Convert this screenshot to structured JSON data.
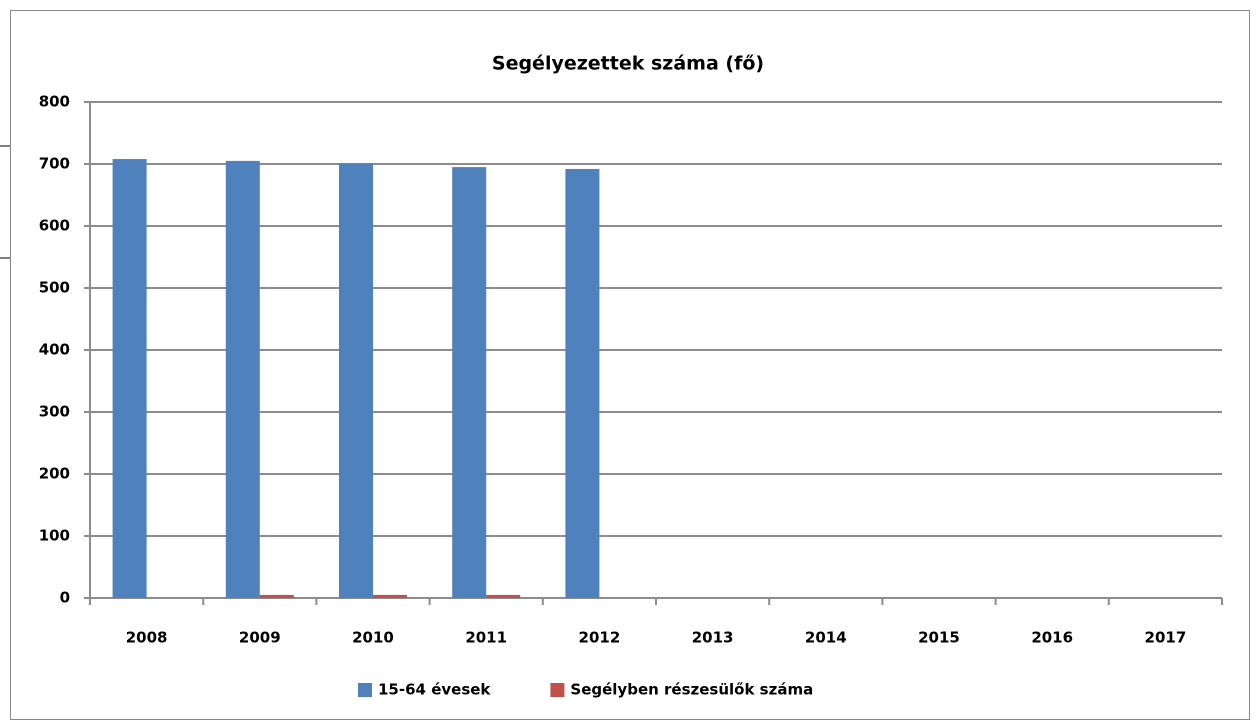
{
  "chart_data": {
    "type": "bar",
    "title": "Segélyezettek száma (fő)",
    "categories": [
      "2008",
      "2009",
      "2010",
      "2011",
      "2012",
      "2013",
      "2014",
      "2015",
      "2016",
      "2017"
    ],
    "series": [
      {
        "name": "15-64 évesek",
        "color": "#4f81bd",
        "values": [
          708,
          705,
          701,
          695,
          692,
          null,
          null,
          null,
          null,
          null
        ]
      },
      {
        "name": "Segélyben részesülők száma",
        "color": "#c0504d",
        "values": [
          null,
          5,
          5,
          5,
          null,
          null,
          null,
          null,
          null,
          null
        ]
      }
    ],
    "ylim": [
      0,
      800
    ],
    "yticks": [
      0,
      100,
      200,
      300,
      400,
      500,
      600,
      700,
      800
    ],
    "grid": true,
    "legend": "bottom"
  }
}
